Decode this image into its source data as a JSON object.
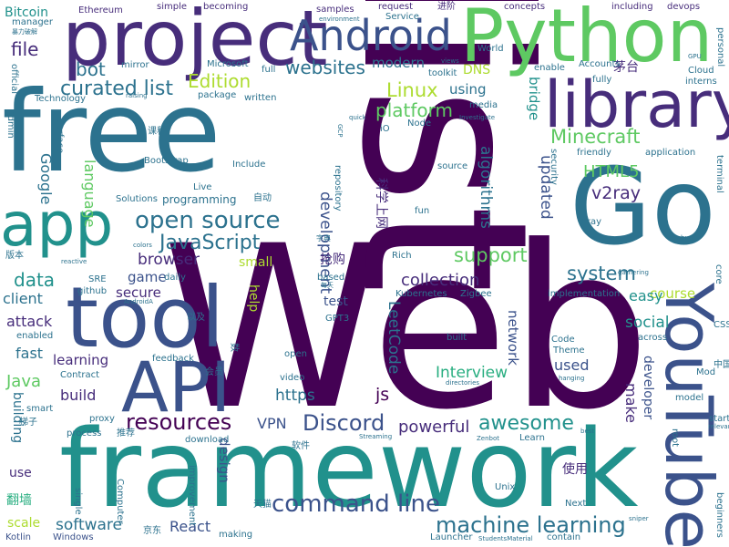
{
  "palette": {
    "c1": "#440154",
    "c2": "#472d7b",
    "c3": "#3b528b",
    "c4": "#2c728e",
    "c5": "#21918c",
    "c6": "#28ae80",
    "c7": "#5ec962",
    "c8": "#addc30",
    "c9": "#fde725"
  },
  "words": [
    {
      "text": "Web"
    },
    {
      "text": "list"
    },
    {
      "text": "free"
    },
    {
      "text": "framework"
    },
    {
      "text": "Go"
    },
    {
      "text": "tool"
    },
    {
      "text": "project"
    },
    {
      "text": "Python"
    },
    {
      "text": "library"
    },
    {
      "text": "API"
    },
    {
      "text": "app"
    },
    {
      "text": "YouTube"
    },
    {
      "text": "Android"
    },
    {
      "text": "command line"
    },
    {
      "text": "machine learning"
    },
    {
      "text": "open source"
    },
    {
      "text": "Discord"
    },
    {
      "text": "resources"
    },
    {
      "text": "awesome"
    },
    {
      "text": "JavaScript"
    },
    {
      "text": "curated list"
    },
    {
      "text": "websites"
    },
    {
      "text": "Minecraft"
    },
    {
      "text": "platform"
    },
    {
      "text": "support"
    },
    {
      "text": "system"
    },
    {
      "text": "collection"
    },
    {
      "text": "Linux"
    },
    {
      "text": "Edition"
    },
    {
      "text": "bot"
    },
    {
      "text": "file"
    },
    {
      "text": "v2ray"
    },
    {
      "text": "HTML5"
    },
    {
      "text": "Interview"
    },
    {
      "text": "social"
    },
    {
      "text": "powerful"
    },
    {
      "text": "software"
    },
    {
      "text": "React"
    },
    {
      "text": "https"
    },
    {
      "text": "VPN"
    },
    {
      "text": "js"
    },
    {
      "text": "LeetCode"
    },
    {
      "text": "development"
    },
    {
      "text": "updated"
    },
    {
      "text": "data"
    },
    {
      "text": "Java"
    },
    {
      "text": "build"
    },
    {
      "text": "attack"
    },
    {
      "text": "fast"
    },
    {
      "text": "learning"
    },
    {
      "text": "browser"
    },
    {
      "text": "game"
    },
    {
      "text": "secure"
    },
    {
      "text": "client"
    },
    {
      "text": "language"
    },
    {
      "text": "algorithms"
    },
    {
      "text": "Google"
    },
    {
      "text": "course"
    },
    {
      "text": "easy"
    },
    {
      "text": "used"
    },
    {
      "text": "make"
    },
    {
      "text": "developer"
    },
    {
      "text": "design"
    },
    {
      "text": "network"
    },
    {
      "text": "using"
    },
    {
      "text": "modern"
    },
    {
      "text": "DNS"
    },
    {
      "text": "bridge"
    },
    {
      "text": "Bitcoin"
    },
    {
      "text": "茅台"
    },
    {
      "text": "科学上网"
    },
    {
      "text": "抢购"
    },
    {
      "text": "翻墙"
    },
    {
      "text": "使用"
    },
    {
      "text": "use"
    },
    {
      "text": "scale"
    },
    {
      "text": "Kotlin"
    },
    {
      "text": "Windows"
    },
    {
      "text": "building"
    },
    {
      "text": "test"
    },
    {
      "text": "small"
    },
    {
      "text": "help"
    },
    {
      "text": "Ethereum"
    },
    {
      "text": "simple"
    },
    {
      "text": "becoming"
    },
    {
      "text": "samples"
    },
    {
      "text": "request"
    },
    {
      "text": "进阶"
    },
    {
      "text": "concepts"
    },
    {
      "text": "including"
    },
    {
      "text": "devops"
    },
    {
      "text": "personal"
    },
    {
      "text": "manager"
    },
    {
      "text": "environment"
    },
    {
      "text": "Service"
    },
    {
      "text": "暴力破解"
    },
    {
      "text": "World"
    },
    {
      "text": "toolkit"
    },
    {
      "text": "views"
    },
    {
      "text": "GPU"
    },
    {
      "text": "mirror"
    },
    {
      "text": "Microsoft"
    },
    {
      "text": "full"
    },
    {
      "text": "enable"
    },
    {
      "text": "Accounts"
    },
    {
      "text": "Cloud"
    },
    {
      "text": "official"
    },
    {
      "text": "raising"
    },
    {
      "text": "package"
    },
    {
      "text": "written"
    },
    {
      "text": "interns"
    },
    {
      "text": "Technology"
    },
    {
      "text": "quick"
    },
    {
      "text": "Investigate"
    },
    {
      "text": "media"
    },
    {
      "text": "Node"
    },
    {
      "text": "Admin"
    },
    {
      "text": "Surface"
    },
    {
      "text": "课程"
    },
    {
      "text": "GCP"
    },
    {
      "text": "iO"
    },
    {
      "text": "friendly"
    },
    {
      "text": "application"
    },
    {
      "text": "Bootstrap"
    },
    {
      "text": "Include"
    },
    {
      "text": "source"
    },
    {
      "text": "security"
    },
    {
      "text": "terminal"
    },
    {
      "text": "Solutions"
    },
    {
      "text": "Live"
    },
    {
      "text": "programming"
    },
    {
      "text": "自动"
    },
    {
      "text": "repository"
    },
    {
      "text": "fun"
    },
    {
      "text": "Xray"
    },
    {
      "text": "字典"
    },
    {
      "text": "版本"
    },
    {
      "text": "colors"
    },
    {
      "text": "bug"
    },
    {
      "text": "reactive"
    },
    {
      "text": "Rich"
    },
    {
      "text": "gathering"
    },
    {
      "text": "based"
    },
    {
      "text": "每天"
    },
    {
      "text": "SRE"
    },
    {
      "text": "daily"
    },
    {
      "text": "core"
    },
    {
      "text": "github"
    },
    {
      "text": "AndroidA"
    },
    {
      "text": "implementation"
    },
    {
      "text": "Kubernetes"
    },
    {
      "text": "Zigbee"
    },
    {
      "text": "GPT3"
    },
    {
      "text": "以及"
    },
    {
      "text": "enabled"
    },
    {
      "text": "Code"
    },
    {
      "text": "built"
    },
    {
      "text": "across"
    },
    {
      "text": "CSS"
    },
    {
      "text": "open"
    },
    {
      "text": "feedback"
    },
    {
      "text": "Theme"
    },
    {
      "text": "Contract"
    },
    {
      "text": "会员"
    },
    {
      "text": "video"
    },
    {
      "text": "directories"
    },
    {
      "text": "hanging"
    },
    {
      "text": "Mod"
    },
    {
      "text": "中国"
    },
    {
      "text": "smart"
    },
    {
      "text": "model"
    },
    {
      "text": "梯子"
    },
    {
      "text": "proxy"
    },
    {
      "text": "推荐"
    },
    {
      "text": "process"
    },
    {
      "text": "Streaming"
    },
    {
      "text": "Learn"
    },
    {
      "text": "best"
    },
    {
      "text": "Zenbot"
    },
    {
      "text": "start"
    },
    {
      "text": "relevant"
    },
    {
      "text": "root"
    },
    {
      "text": "download"
    },
    {
      "text": "软件"
    },
    {
      "text": "improvement"
    },
    {
      "text": "Computer"
    },
    {
      "text": "single"
    },
    {
      "text": "Unix"
    },
    {
      "text": "Next"
    },
    {
      "text": "天猫"
    },
    {
      "text": "京东"
    },
    {
      "text": "making"
    },
    {
      "text": "Launcher"
    },
    {
      "text": "StudentsMaterial"
    },
    {
      "text": "contain"
    },
    {
      "text": "sniper"
    },
    {
      "text": "beginners"
    },
    {
      "text": "fully"
    },
    {
      "text": "数"
    }
  ]
}
